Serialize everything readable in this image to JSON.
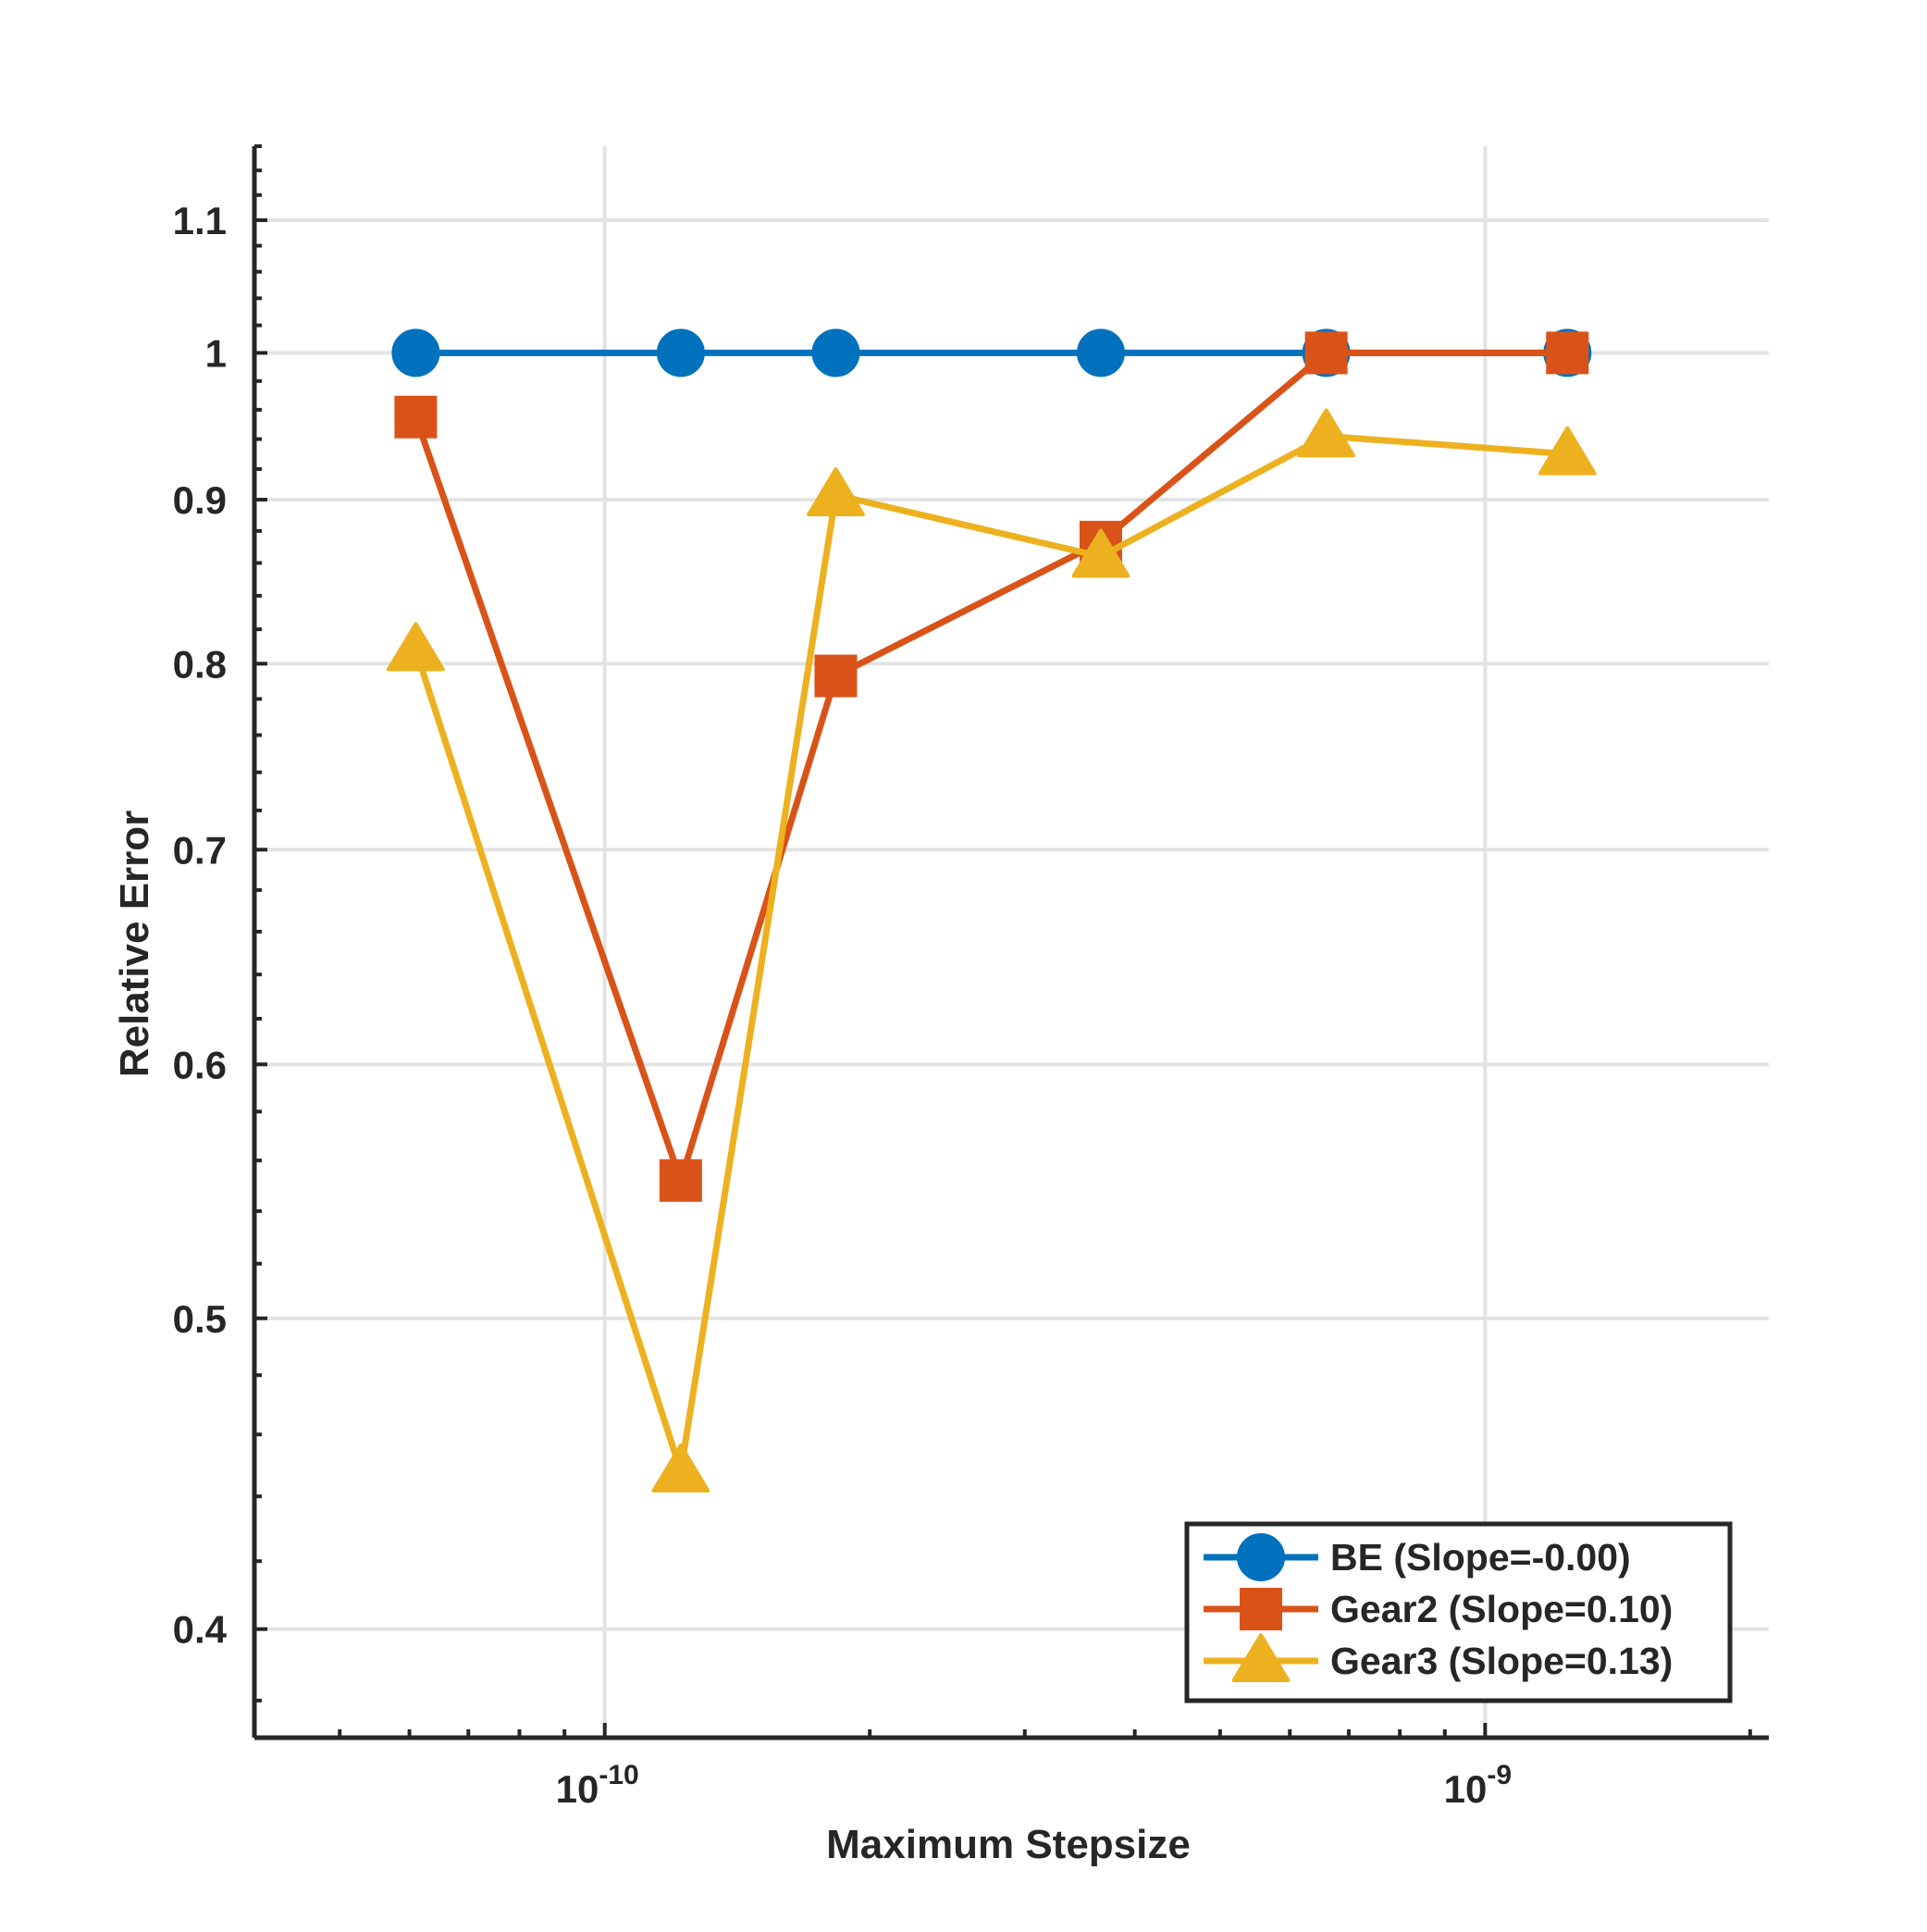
{
  "chart_data": {
    "type": "line",
    "title": "",
    "xlabel": "Maximum Stepsize",
    "ylabel": "Relative Error",
    "xscale": "log",
    "yscale": "log",
    "xlim": [
      4e-11,
      2.1e-09
    ],
    "ylim": [
      0.37,
      1.16
    ],
    "grid": true,
    "x_ticks": [
      {
        "value": 1e-10,
        "base": "10",
        "exponent": "-10"
      },
      {
        "value": 1e-09,
        "base": "10",
        "exponent": "-9"
      }
    ],
    "y_ticks": [
      {
        "value": 0.4,
        "label": "0.4"
      },
      {
        "value": 0.5,
        "label": "0.5"
      },
      {
        "value": 0.6,
        "label": "0.6"
      },
      {
        "value": 0.7,
        "label": "0.7"
      },
      {
        "value": 0.8,
        "label": "0.8"
      },
      {
        "value": 0.9,
        "label": "0.9"
      },
      {
        "value": 1.0,
        "label": "1"
      },
      {
        "value": 1.1,
        "label": "1.1"
      }
    ],
    "x": [
      6.1e-11,
      1.22e-10,
      1.83e-10,
      3.66e-10,
      6.6e-10,
      1.24e-09
    ],
    "legend_position": "bottom-right",
    "series": [
      {
        "name": "BE (Slope=-0.00)",
        "marker": "circle",
        "color": "#0072BD",
        "values": [
          1.0,
          1.0,
          1.0,
          1.0,
          1.0,
          1.0
        ]
      },
      {
        "name": "Gear2 (Slope=0.10)",
        "marker": "square",
        "color": "#D95319",
        "values": [
          0.955,
          0.552,
          0.793,
          0.873,
          1.0,
          1.0
        ]
      },
      {
        "name": "Gear3 (Slope=0.13)",
        "marker": "triangle",
        "color": "#EDB120",
        "values": [
          0.808,
          0.448,
          0.903,
          0.864,
          0.942,
          0.93
        ]
      }
    ]
  }
}
